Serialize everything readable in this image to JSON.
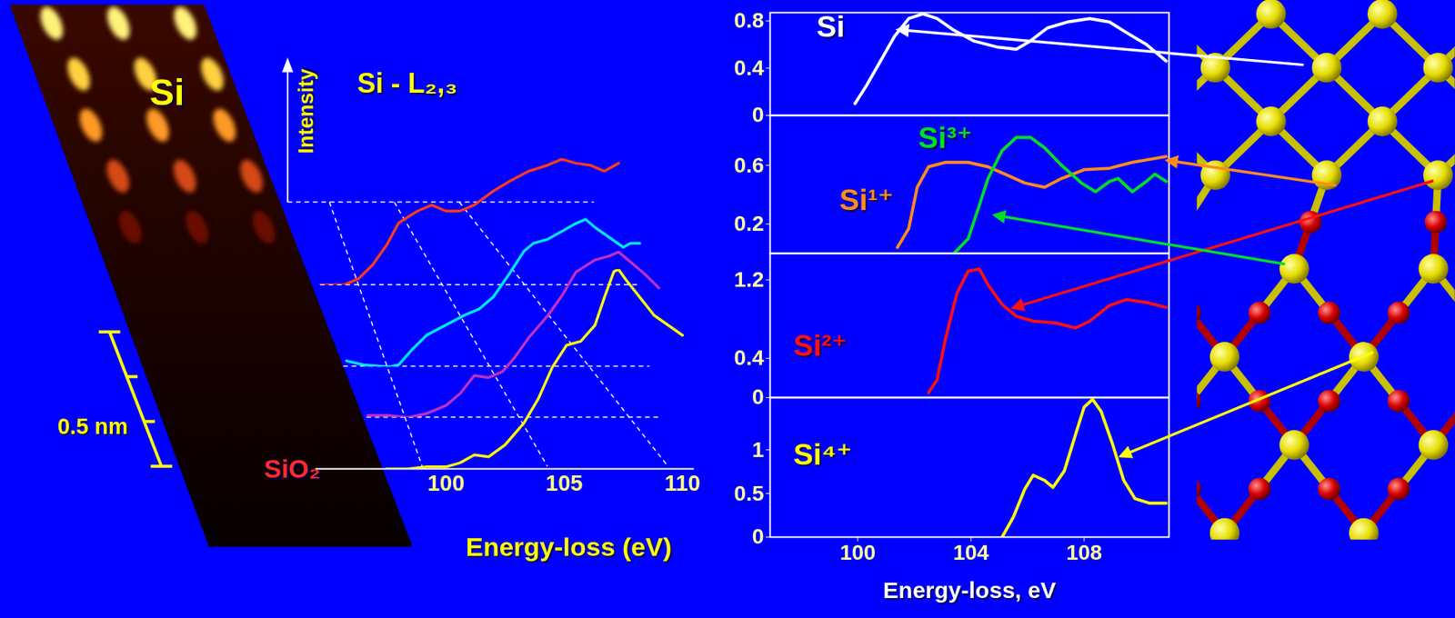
{
  "chart_data": [
    {
      "type": "line",
      "title": "Si - L₂,₃",
      "ylabel": "Intensity",
      "xlabel": "Energy-loss (eV)",
      "xlim": [
        94.5,
        110.5
      ],
      "xticks": [
        100,
        105,
        110
      ],
      "ylim": [
        0,
        1
      ],
      "tick_labels": "x",
      "series": [
        {
          "color": "#ff3b1a",
          "x": [
            94.7,
            95.7,
            96.3,
            96.9,
            97.5,
            98.0,
            98.8,
            99.4,
            100.0,
            100.6,
            101.2,
            102.0,
            102.7,
            103.5,
            104.3,
            104.9,
            105.5,
            106.1,
            106.7,
            107.3
          ],
          "values": [
            0,
            0,
            0.03,
            0.1,
            0.2,
            0.31,
            0.37,
            0.4,
            0.37,
            0.37,
            0.4,
            0.47,
            0.52,
            0.57,
            0.6,
            0.63,
            0.61,
            0.6,
            0.57,
            0.61
          ]
        },
        {
          "color": "#00e5ff",
          "x": [
            95.8,
            96.5,
            97.6,
            98.0,
            98.6,
            99.2,
            100.0,
            100.8,
            101.4,
            102.0,
            102.7,
            103.3,
            103.7,
            104.3,
            104.9,
            105.5,
            105.9,
            106.3,
            106.9,
            107.5,
            107.8,
            108.2
          ],
          "values": [
            0.03,
            0.01,
            0,
            0.01,
            0.09,
            0.16,
            0.21,
            0.26,
            0.29,
            0.35,
            0.47,
            0.58,
            0.62,
            0.64,
            0.68,
            0.72,
            0.74,
            0.7,
            0.65,
            0.6,
            0.62,
            0.62
          ]
        },
        {
          "color": "#c030c0",
          "x": [
            96.7,
            97.6,
            98.4,
            99.2,
            100.0,
            100.6,
            101.2,
            101.8,
            102.4,
            102.9,
            103.5,
            104.3,
            104.9,
            105.5,
            106.3,
            106.9,
            107.3,
            107.8,
            108.4,
            109.0
          ],
          "values": [
            0.01,
            0.01,
            0,
            0.02,
            0.06,
            0.12,
            0.21,
            0.2,
            0.23,
            0.3,
            0.4,
            0.51,
            0.61,
            0.73,
            0.79,
            0.81,
            0.83,
            0.78,
            0.72,
            0.65
          ]
        },
        {
          "color": "#ffff00",
          "x": [
            97.5,
            98.4,
            99.2,
            100.0,
            100.6,
            101.2,
            101.8,
            102.5,
            103.3,
            103.9,
            104.5,
            105.1,
            105.7,
            106.3,
            106.7,
            107.1,
            107.3,
            107.6,
            108.2,
            108.8,
            109.4,
            110.0
          ],
          "values": [
            0,
            0,
            0.01,
            0.01,
            0.03,
            0.07,
            0.06,
            0.12,
            0.23,
            0.35,
            0.51,
            0.62,
            0.64,
            0.72,
            0.86,
            0.99,
            1.0,
            0.95,
            0.86,
            0.77,
            0.72,
            0.67
          ]
        }
      ]
    },
    {
      "type": "line",
      "xlim": [
        96.9,
        111
      ],
      "xticks": [
        100,
        104,
        108
      ],
      "ylim": [
        0,
        0.87
      ],
      "yticks": [
        0,
        0.4,
        0.8
      ],
      "tick_labels": "y",
      "series": [
        {
          "name": "Si",
          "color": "#ffffff",
          "x": [
            99.9,
            100.3,
            100.8,
            101.3,
            101.8,
            102.3,
            102.8,
            103.4,
            104.1,
            104.9,
            105.6,
            106.1,
            106.7,
            107.4,
            108.2,
            108.9,
            109.5,
            110.2,
            110.9
          ],
          "values": [
            0.1,
            0.25,
            0.46,
            0.67,
            0.82,
            0.86,
            0.82,
            0.72,
            0.63,
            0.58,
            0.56,
            0.63,
            0.74,
            0.79,
            0.82,
            0.79,
            0.7,
            0.6,
            0.46
          ]
        }
      ]
    },
    {
      "type": "line",
      "xlim": [
        96.9,
        111
      ],
      "xticks": [
        100,
        104,
        108
      ],
      "ylim": [
        0,
        0.94
      ],
      "yticks": [
        0.2,
        0.6
      ],
      "tick_labels": "y",
      "series": [
        {
          "name": "Si¹⁺",
          "color": "#ff8c1a",
          "x": [
            101.4,
            101.8,
            102.1,
            102.5,
            103.1,
            103.9,
            104.6,
            105.2,
            105.9,
            106.6,
            107.2,
            108.0,
            108.9,
            109.7,
            110.9
          ],
          "values": [
            0.04,
            0.17,
            0.45,
            0.59,
            0.62,
            0.62,
            0.59,
            0.54,
            0.48,
            0.45,
            0.51,
            0.57,
            0.58,
            0.62,
            0.66
          ]
        },
        {
          "name": "Si³⁺",
          "color": "#00e020",
          "x": [
            103.4,
            103.9,
            104.3,
            104.6,
            105.1,
            105.6,
            106.1,
            106.6,
            107.2,
            107.9,
            108.4,
            108.9,
            109.2,
            109.7,
            110.2,
            110.5,
            110.9
          ],
          "values": [
            0,
            0.1,
            0.33,
            0.51,
            0.7,
            0.79,
            0.79,
            0.72,
            0.6,
            0.48,
            0.42,
            0.49,
            0.51,
            0.42,
            0.49,
            0.54,
            0.49
          ]
        }
      ]
    },
    {
      "type": "line",
      "xlim": [
        96.9,
        111
      ],
      "xticks": [
        100,
        104,
        108
      ],
      "ylim": [
        0,
        1.47
      ],
      "yticks": [
        0,
        0.4,
        1.2
      ],
      "tick_labels": "y",
      "series": [
        {
          "name": "Si²⁺",
          "color": "#ff1010",
          "x": [
            102.5,
            102.8,
            103.1,
            103.5,
            103.9,
            104.3,
            104.6,
            105.1,
            105.6,
            106.2,
            107.0,
            107.7,
            108.2,
            108.9,
            109.5,
            110.2,
            110.9
          ],
          "values": [
            0.05,
            0.18,
            0.6,
            1.06,
            1.29,
            1.31,
            1.15,
            0.95,
            0.83,
            0.78,
            0.76,
            0.71,
            0.78,
            0.94,
            1.0,
            0.97,
            0.92
          ]
        }
      ]
    },
    {
      "type": "line",
      "xlabel": "Energy-loss, eV",
      "xlim": [
        96.9,
        111
      ],
      "xticks": [
        100,
        104,
        108
      ],
      "ylim": [
        0,
        1.6
      ],
      "yticks": [
        0,
        0.5,
        1
      ],
      "series": [
        {
          "name": "Si⁴⁺",
          "color": "#ffff00",
          "x": [
            105.1,
            105.5,
            105.9,
            106.2,
            106.6,
            106.9,
            107.3,
            107.7,
            108.0,
            108.3,
            108.6,
            109.0,
            109.4,
            109.8,
            110.3,
            110.9
          ],
          "values": [
            0,
            0.23,
            0.55,
            0.71,
            0.65,
            0.57,
            0.76,
            1.18,
            1.49,
            1.58,
            1.44,
            1.07,
            0.65,
            0.44,
            0.39,
            0.39
          ]
        }
      ]
    }
  ],
  "stem_image": {
    "labels": [
      "Si",
      "SiO₂"
    ],
    "scale_bar": "0.5 nm"
  }
}
